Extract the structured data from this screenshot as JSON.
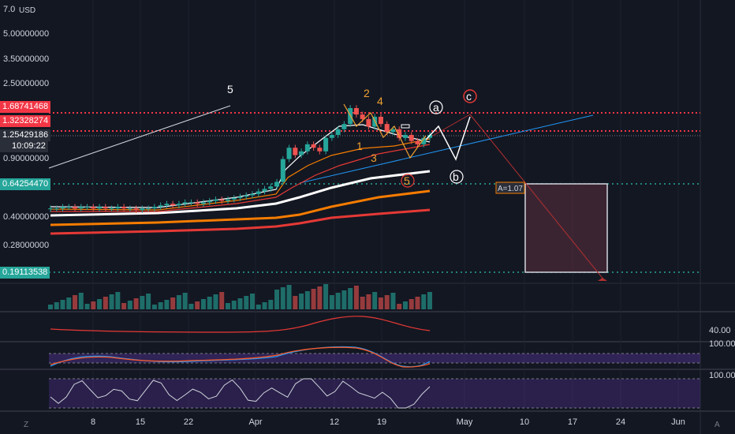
{
  "currency_label": "USD",
  "top_tick": "7.0",
  "y_ticks": [
    "5.00000000",
    "3.50000000",
    "2.50000000",
    "0.90000000",
    "0.40000000",
    "0.28000000"
  ],
  "price_labels": [
    {
      "value": "1.68741468",
      "color": "#f23645"
    },
    {
      "value": "1.32328274",
      "color": "#f23645"
    },
    {
      "value": "1.25429186",
      "color": "#2a2e39"
    },
    {
      "value": "10:09:22",
      "color": "#2a2e39"
    },
    {
      "value": "0.64254470",
      "color": "#26a69a"
    },
    {
      "value": "0.19113538",
      "color": "#26a69a"
    }
  ],
  "x_ticks": [
    "8",
    "15",
    "22",
    "Apr",
    "12",
    "19",
    "May",
    "10",
    "17",
    "24",
    "Jun"
  ],
  "z_label": "Z",
  "a_label": "A",
  "indicator_ticks": [
    "40.00",
    "100.00",
    "100.00"
  ],
  "wave_labels": {
    "primary_5": "5",
    "wave_1": "1",
    "wave_2": "2",
    "wave_3": "3",
    "wave_4": "4",
    "wave_5": "5",
    "wave_a": "a",
    "wave_b": "b",
    "wave_c": "c"
  },
  "measure_label": "A=1.07",
  "colors": {
    "up": "#26a69a",
    "down": "#ef5350",
    "orange": "#f57c00",
    "red": "#e53935",
    "white": "#ffffff",
    "wave_orange": "#f0a030",
    "target_box": "#5c3040"
  },
  "chart_data": {
    "type": "candlestick",
    "scale": "log",
    "currency": "USD",
    "levels": [
      1.68741468,
      1.32328274,
      0.6425447,
      0.19113538
    ],
    "last_price": 1.25429186,
    "closes": [
      0.46,
      0.46,
      0.47,
      0.47,
      0.46,
      0.47,
      0.47,
      0.46,
      0.47,
      0.46,
      0.46,
      0.47,
      0.46,
      0.46,
      0.45,
      0.46,
      0.46,
      0.47,
      0.48,
      0.49,
      0.48,
      0.49,
      0.5,
      0.5,
      0.49,
      0.5,
      0.51,
      0.52,
      0.51,
      0.52,
      0.53,
      0.54,
      0.55,
      0.56,
      0.58,
      0.6,
      0.62,
      0.66,
      0.9,
      1.05,
      0.95,
      1.0,
      1.1,
      1.05,
      1.0,
      1.2,
      1.25,
      1.35,
      1.45,
      1.8,
      1.65,
      1.55,
      1.4,
      1.6,
      1.45,
      1.3,
      1.35,
      1.2,
      1.25,
      1.15,
      1.1,
      1.2,
      1.25
    ]
  }
}
